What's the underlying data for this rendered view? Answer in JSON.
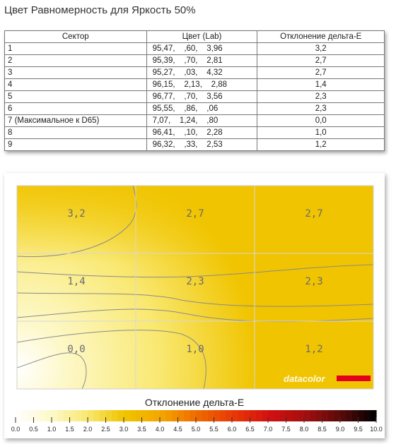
{
  "title": "Цвет Равномерность для Яркость 50%",
  "table": {
    "headers": [
      "Сектор",
      "Цвет (Lab)",
      "Отклонение дельта-Е"
    ],
    "rows": [
      {
        "sector": "1",
        "lab": "95,47,    ,60,    3,96",
        "de": "3,2"
      },
      {
        "sector": "2",
        "lab": "95,39,    ,70,    2,81",
        "de": "2,7"
      },
      {
        "sector": "3",
        "lab": "95,27,    ,03,    4,32",
        "de": "2,7"
      },
      {
        "sector": "4",
        "lab": "96,15,    2,13,    2,88",
        "de": "1,4"
      },
      {
        "sector": "5",
        "lab": "96,77,    ,70,    3,56",
        "de": "2,3"
      },
      {
        "sector": "6",
        "lab": "95,55,    ,86,    ,06",
        "de": "2,3"
      },
      {
        "sector": "7 (Максимальное к D65)",
        "lab": "7,07,    1,24,    ,80",
        "de": "0,0"
      },
      {
        "sector": "8",
        "lab": "96,41,    ,10,    2,28",
        "de": "1,0"
      },
      {
        "sector": "9",
        "lab": "96,32,    ,33,    2,53",
        "de": "1,2"
      }
    ]
  },
  "chart_data": {
    "type": "heatmap",
    "grid": [
      [
        "3,2",
        "2,7",
        "2,7"
      ],
      [
        "1,4",
        "2,3",
        "2,3"
      ],
      [
        "0,0",
        "1,0",
        "1,2"
      ]
    ],
    "values": [
      [
        3.2,
        2.7,
        2.7
      ],
      [
        1.4,
        2.3,
        2.3
      ],
      [
        0.0,
        1.0,
        1.2
      ]
    ],
    "watermark": "datacolor",
    "legend_title": "Отклонение дельта-Е",
    "scale_ticks": [
      "0.0",
      "0.5",
      "1.0",
      "1.5",
      "2.0",
      "2.5",
      "3.0",
      "3.5",
      "4.0",
      "4.5",
      "5.0",
      "5.5",
      "6.0",
      "6.5",
      "7.0",
      "7.5",
      "8.0",
      "8.5",
      "9.0",
      "9.5",
      "10.0"
    ],
    "scale_range": [
      0,
      10
    ],
    "colors": {
      "c0": "#ffffff",
      "c1": "#fdf8c8",
      "c2": "#f9e870",
      "c3": "#f0c400",
      "c4": "#f3a800",
      "c5": "#ef6c00",
      "c6": "#e83a06",
      "c7": "#d41010",
      "c8": "#a50f0f",
      "c9": "#5a0a0a",
      "c10": "#000000",
      "brand_bar": "#e3001b"
    }
  }
}
